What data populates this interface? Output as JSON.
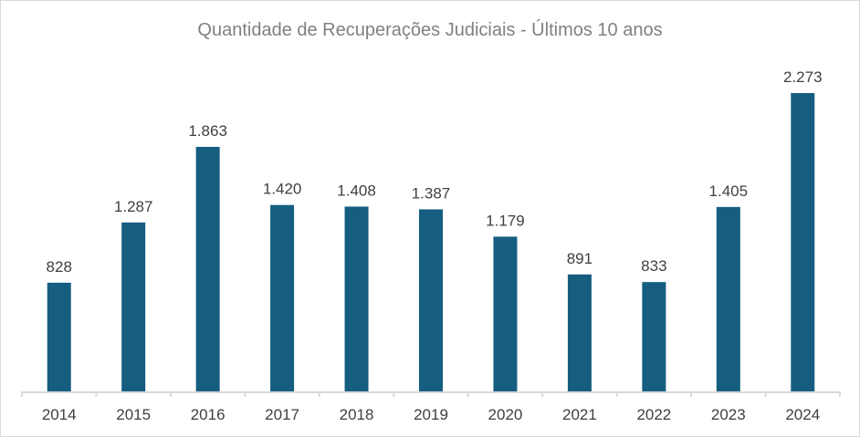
{
  "chart_data": {
    "type": "bar",
    "title": "Quantidade de Recuperações Judiciais - Últimos 10 anos",
    "categories": [
      "2014",
      "2015",
      "2016",
      "2017",
      "2018",
      "2019",
      "2020",
      "2021",
      "2022",
      "2023",
      "2024"
    ],
    "values": [
      828,
      1287,
      1863,
      1420,
      1408,
      1387,
      1179,
      891,
      833,
      1405,
      2273
    ],
    "data_labels": [
      "828",
      "1.287",
      "1.863",
      "1.420",
      "1.408",
      "1.387",
      "1.179",
      "891",
      "833",
      "1.405",
      "2.273"
    ],
    "xlabel": "",
    "ylabel": "",
    "ylim": [
      0,
      2273
    ],
    "grid": false,
    "legend": "none",
    "colors": {
      "bar": "#155e80",
      "title": "#808080",
      "label": "#404040",
      "axis": "#d9d9d9"
    }
  }
}
